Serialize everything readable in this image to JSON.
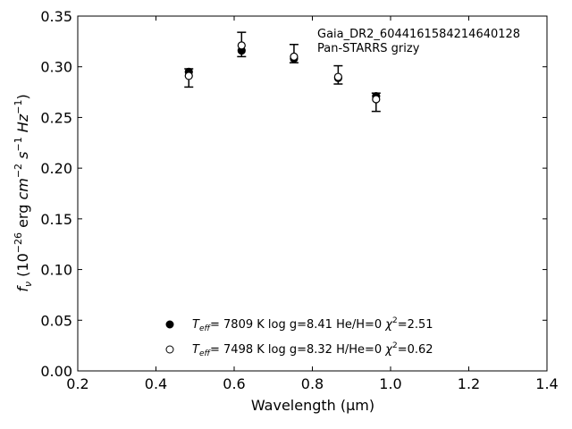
{
  "chart_data": {
    "type": "scatter",
    "xlabel": "Wavelength (μm)",
    "ylabel_parts": {
      "f": "f",
      "nu": "ν",
      "units_a": " (10",
      "exp_a": "−26",
      "units_b": " erg ",
      "cm": "cm",
      "exp_cm": "−2",
      "s": "s",
      "exp_s": "−1",
      "hz": "Hz",
      "exp_hz": "−1",
      "close": ")"
    },
    "xlim": [
      0.2,
      1.4
    ],
    "ylim": [
      0.0,
      0.35
    ],
    "xticks": [
      0.2,
      0.4,
      0.6,
      0.8,
      1.0,
      1.2,
      1.4
    ],
    "xtick_labels": [
      "0.2",
      "0.4",
      "0.6",
      "0.8",
      "1.0",
      "1.2",
      "1.4"
    ],
    "yticks": [
      0.0,
      0.05,
      0.1,
      0.15,
      0.2,
      0.25,
      0.3,
      0.35
    ],
    "ytick_labels": [
      "0.00",
      "0.05",
      "0.10",
      "0.15",
      "0.20",
      "0.25",
      "0.30",
      "0.35"
    ],
    "grid": false,
    "annotations": [
      "Gaia_DR2_6044161584214640128",
      "Pan-STARRS grizy"
    ],
    "observed": {
      "x": [
        0.484,
        0.619,
        0.753,
        0.866,
        0.963
      ],
      "y": [
        0.289,
        0.322,
        0.313,
        0.292,
        0.265
      ],
      "yerr": [
        0.009,
        0.012,
        0.009,
        0.009,
        0.009
      ]
    },
    "series": [
      {
        "marker": "filled-circle",
        "x": [
          0.484,
          0.619,
          0.753,
          0.866,
          0.963
        ],
        "y": [
          0.295,
          0.316,
          0.308,
          0.289,
          0.271
        ],
        "legend": {
          "teff_prefix": "T",
          "teff_sub": "eff",
          "teff_eq": "=  7809 K  log g=8.41  He/H=0  ",
          "chi": "χ",
          "chi_sup": "2",
          "chi_val": "=2.51"
        }
      },
      {
        "marker": "open-circle",
        "x": [
          0.484,
          0.619,
          0.753,
          0.866,
          0.963
        ],
        "y": [
          0.291,
          0.321,
          0.31,
          0.29,
          0.268
        ],
        "legend": {
          "teff_prefix": "T",
          "teff_sub": "eff",
          "teff_eq": "=  7498 K  log g=8.32  H/He=0  ",
          "chi": "χ",
          "chi_sup": "2",
          "chi_val": "=0.62"
        }
      }
    ]
  }
}
